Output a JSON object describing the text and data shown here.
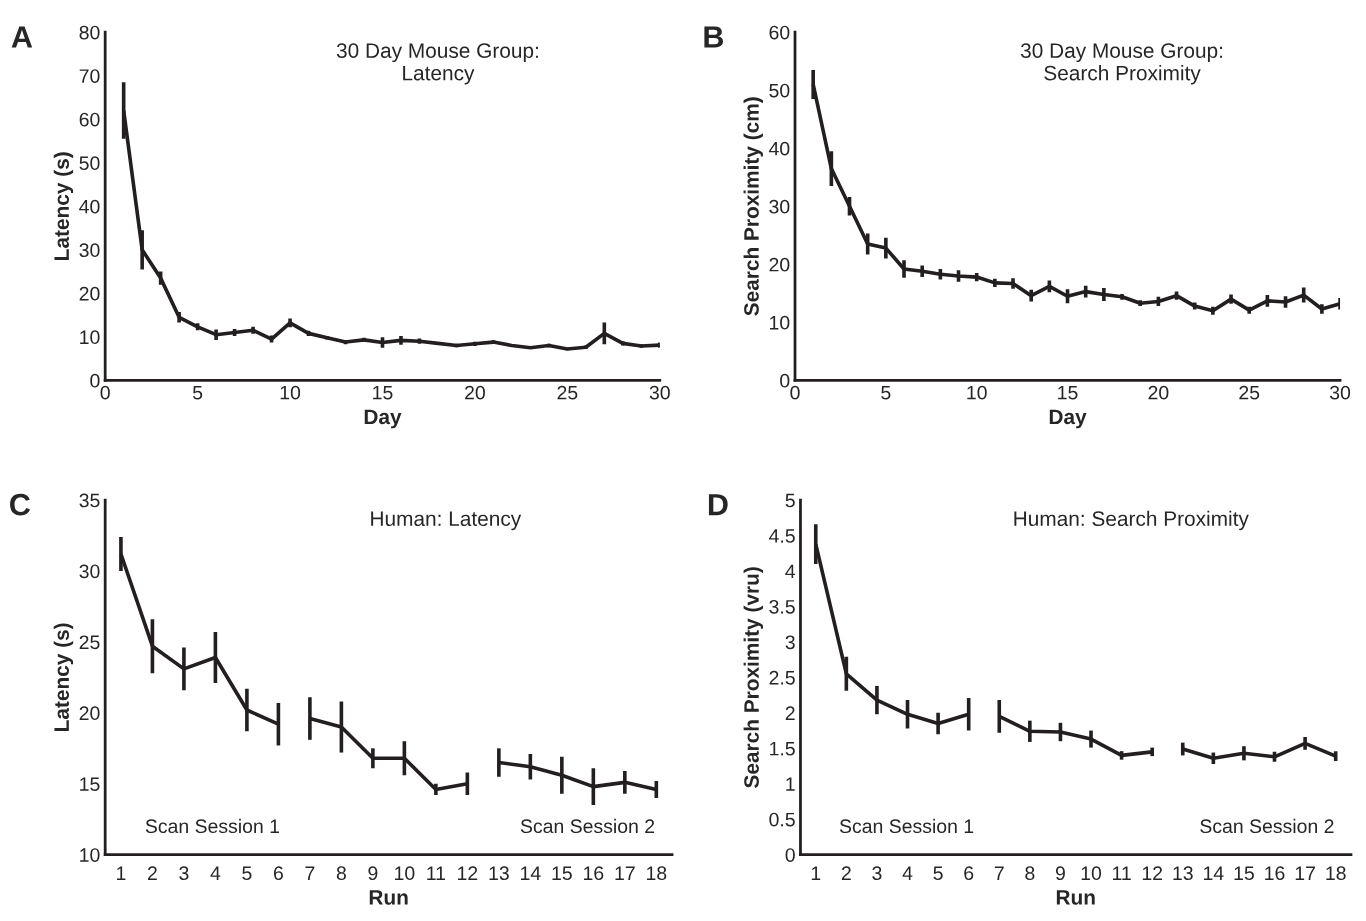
{
  "chart_data": [
    {
      "type": "line",
      "title": "30 Day Mouse Group:\nLatency",
      "xlabel": "Day",
      "ylabel": "Latency (s)",
      "annotations": [
        "A"
      ],
      "x": [
        1,
        2,
        3,
        4,
        5,
        6,
        7,
        8,
        9,
        10,
        11,
        12,
        13,
        14,
        15,
        16,
        17,
        18,
        19,
        20,
        21,
        22,
        23,
        24,
        25,
        26,
        27,
        28,
        29,
        30
      ],
      "series": [
        {
          "color": "#231f20",
          "values": [
            62,
            30,
            23.5,
            14.5,
            12.3,
            10.5,
            11,
            11.5,
            9.5,
            13.2,
            10.8,
            9.8,
            8.8,
            9.3,
            8.7,
            9.2,
            9,
            8.5,
            8,
            8.4,
            8.8,
            8,
            7.5,
            8,
            7.2,
            7.6,
            10.8,
            8.5,
            7.9,
            8.1
          ],
          "errors": [
            6.5,
            4.5,
            1.5,
            1.2,
            0.8,
            1.2,
            0.8,
            0.8,
            0.8,
            1,
            0.6,
            0.4,
            0.5,
            0.5,
            1.2,
            1,
            0.6,
            0.3,
            0.4,
            0.5,
            0.4,
            0.3,
            0.3,
            0.4,
            0.3,
            0.4,
            2.5,
            0.5,
            0.4,
            0.6
          ]
        }
      ],
      "xlim": [
        0,
        30
      ],
      "xticks": [
        0,
        5,
        10,
        15,
        20,
        25,
        30
      ],
      "ylim": [
        0,
        80
      ],
      "yticks": [
        0,
        10,
        20,
        30,
        40,
        50,
        60,
        70,
        80
      ],
      "grid": false,
      "legend": false,
      "marker": "none",
      "line_style": "solid"
    },
    {
      "type": "line",
      "title": "30 Day Mouse Group:\nSearch Proximity",
      "xlabel": "Day",
      "ylabel": "Search Proximity (cm)",
      "annotations": [
        "B"
      ],
      "x": [
        1,
        2,
        3,
        4,
        5,
        6,
        7,
        8,
        9,
        10,
        11,
        12,
        13,
        14,
        15,
        16,
        17,
        18,
        19,
        20,
        21,
        22,
        23,
        24,
        25,
        26,
        27,
        28,
        29,
        30
      ],
      "series": [
        {
          "color": "#231f20",
          "values": [
            51,
            36.5,
            30,
            23.5,
            22.8,
            19.2,
            18.8,
            18.3,
            18,
            17.8,
            16.8,
            16.7,
            14.6,
            16.2,
            14.5,
            15.3,
            14.8,
            14.4,
            13.3,
            13.6,
            14.6,
            12.8,
            12,
            14,
            12.1,
            13.7,
            13.5,
            14.7,
            12.3,
            13.2
          ],
          "errors": [
            2.5,
            3,
            1.6,
            1.8,
            1.8,
            1.5,
            1,
            0.9,
            1,
            0.7,
            0.7,
            0.9,
            1,
            1,
            1.2,
            1,
            1.1,
            0.5,
            0.5,
            0.8,
            0.7,
            0.6,
            0.7,
            0.8,
            0.6,
            1,
            1,
            1.3,
            0.8,
            1
          ]
        }
      ],
      "xlim": [
        0,
        30
      ],
      "xticks": [
        0,
        5,
        10,
        15,
        20,
        25,
        30
      ],
      "ylim": [
        0,
        60
      ],
      "yticks": [
        0,
        10,
        20,
        30,
        40,
        50,
        60
      ],
      "grid": false,
      "legend": false,
      "marker": "none",
      "line_style": "solid"
    },
    {
      "type": "line",
      "title": "Human: Latency",
      "xlabel": "Run",
      "ylabel": "Latency (s)",
      "annotations": [
        "C",
        "Scan Session 1",
        "Scan Session 2"
      ],
      "categories": [
        "1",
        "2",
        "3",
        "4",
        "5",
        "6",
        "7",
        "8",
        "9",
        "10",
        "11",
        "12",
        "13",
        "14",
        "15",
        "16",
        "17",
        "18"
      ],
      "series": [
        {
          "color": "#231f20",
          "values": [
            31.2,
            24.7,
            23.1,
            23.9,
            20.2,
            19.2,
            null,
            null,
            null,
            null,
            null,
            null,
            null,
            null,
            null,
            null,
            null,
            null
          ],
          "errors": [
            1.2,
            1.9,
            1.5,
            1.8,
            1.5,
            1.5,
            null,
            null,
            null,
            null,
            null,
            null,
            null,
            null,
            null,
            null,
            null,
            null
          ]
        },
        {
          "color": "#231f20",
          "values": [
            null,
            null,
            null,
            null,
            null,
            null,
            19.6,
            19,
            16.8,
            16.8,
            14.6,
            15,
            null,
            null,
            null,
            null,
            null,
            null
          ],
          "errors": [
            null,
            null,
            null,
            null,
            null,
            null,
            1.5,
            1.8,
            0.7,
            1.2,
            0.4,
            0.8,
            null,
            null,
            null,
            null,
            null,
            null
          ]
        },
        {
          "color": "#231f20",
          "values": [
            null,
            null,
            null,
            null,
            null,
            null,
            null,
            null,
            null,
            null,
            null,
            null,
            16.5,
            16.2,
            15.6,
            14.8,
            15.1,
            14.6
          ],
          "errors": [
            null,
            null,
            null,
            null,
            null,
            null,
            null,
            null,
            null,
            null,
            null,
            null,
            1,
            0.9,
            1.3,
            1.3,
            0.8,
            0.6
          ]
        }
      ],
      "ylim": [
        10,
        35
      ],
      "yticks": [
        10,
        15,
        20,
        25,
        30,
        35
      ],
      "grid": false,
      "legend": false,
      "marker": "none",
      "line_style": "solid"
    },
    {
      "type": "line",
      "title": "Human: Search Proximity",
      "xlabel": "Run",
      "ylabel": "Search Proximity (vru)",
      "annotations": [
        "D",
        "Scan Session 1",
        "Scan Session 2"
      ],
      "categories": [
        "1",
        "2",
        "3",
        "4",
        "5",
        "6",
        "7",
        "8",
        "9",
        "10",
        "11",
        "12",
        "13",
        "14",
        "15",
        "16",
        "17",
        "18"
      ],
      "series": [
        {
          "color": "#231f20",
          "values": [
            4.38,
            2.55,
            2.18,
            1.98,
            1.85,
            1.98,
            null,
            null,
            null,
            null,
            null,
            null,
            null,
            null,
            null,
            null,
            null,
            null
          ],
          "errors": [
            0.28,
            0.24,
            0.2,
            0.2,
            0.15,
            0.23,
            null,
            null,
            null,
            null,
            null,
            null,
            null,
            null,
            null,
            null,
            null,
            null
          ]
        },
        {
          "color": "#231f20",
          "values": [
            null,
            null,
            null,
            null,
            null,
            null,
            1.95,
            1.74,
            1.73,
            1.63,
            1.4,
            1.45,
            null,
            null,
            null,
            null,
            null,
            null
          ],
          "errors": [
            null,
            null,
            null,
            null,
            null,
            null,
            0.23,
            0.15,
            0.13,
            0.12,
            0.06,
            0.06,
            null,
            null,
            null,
            null,
            null,
            null
          ]
        },
        {
          "color": "#231f20",
          "values": [
            null,
            null,
            null,
            null,
            null,
            null,
            null,
            null,
            null,
            null,
            null,
            null,
            1.49,
            1.36,
            1.43,
            1.38,
            1.57,
            1.39
          ],
          "errors": [
            null,
            null,
            null,
            null,
            null,
            null,
            null,
            null,
            null,
            null,
            null,
            null,
            0.09,
            0.08,
            0.1,
            0.07,
            0.09,
            0.07
          ]
        }
      ],
      "ylim": [
        0,
        5
      ],
      "yticks": [
        0,
        0.5,
        1,
        1.5,
        2,
        2.5,
        3,
        3.5,
        4,
        4.5,
        5
      ],
      "grid": false,
      "legend": false,
      "marker": "none",
      "line_style": "solid"
    }
  ]
}
